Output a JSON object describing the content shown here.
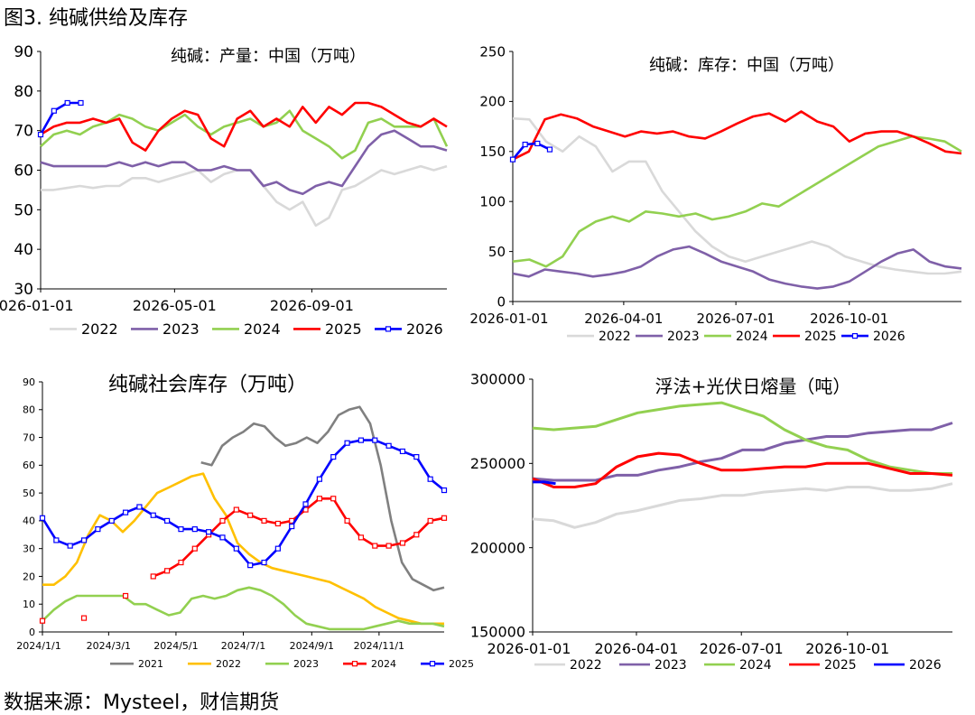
{
  "figure_title": "图3.  纯碱供给及库存",
  "source": "数据来源：Mysteel，财信期货",
  "colors": {
    "2021": "#808080",
    "2022": "#d9d9d9",
    "2022b": "#ffc000",
    "2023": "#7f60a8",
    "2023c": "#92d050",
    "2024": "#92d050",
    "2024b": "#ff0000",
    "2025": "#ff0000",
    "2025b": "#0000ff",
    "2026": "#0000ff"
  },
  "chart_data": [
    {
      "type": "line",
      "title": "纯碱：产量：中国（万吨）",
      "ylim": [
        30,
        90
      ],
      "yticks": [
        "30",
        "40",
        "50",
        "60",
        "70",
        "80",
        "90"
      ],
      "xticks": [
        "2026-01-01",
        "2026-05-01",
        "2026-09-01"
      ],
      "xtick_days": [
        0,
        120,
        243
      ],
      "xdays": 364,
      "series": [
        {
          "name": "2022",
          "color": "#d9d9d9",
          "values": [
            55,
            55,
            55.5,
            56,
            55.5,
            56,
            56,
            58,
            58,
            57,
            58,
            59,
            60,
            57,
            59,
            60,
            60,
            56,
            52,
            50,
            52,
            46,
            48,
            55,
            56,
            58,
            60,
            59,
            60,
            61,
            60,
            61
          ]
        },
        {
          "name": "2023",
          "color": "#7f60a8",
          "values": [
            62,
            61,
            61,
            61,
            61,
            61,
            62,
            61,
            62,
            61,
            62,
            62,
            60,
            60,
            61,
            60,
            60,
            56,
            57,
            55,
            54,
            56,
            57,
            56,
            61,
            66,
            69,
            70,
            68,
            66,
            66,
            65
          ]
        },
        {
          "name": "2024",
          "color": "#92d050",
          "values": [
            66,
            69,
            70,
            69,
            71,
            72,
            74,
            73,
            71,
            70,
            72,
            74,
            71,
            69,
            71,
            72,
            73,
            71,
            72,
            75,
            70,
            68,
            66,
            63,
            65,
            72,
            73,
            71,
            71,
            71,
            73,
            66
          ]
        },
        {
          "name": "2025",
          "color": "#ff0000",
          "values": [
            69,
            71,
            72,
            72,
            73,
            72,
            73,
            67,
            65,
            70,
            73,
            75,
            74,
            68,
            66,
            73,
            75,
            71,
            73,
            71,
            76,
            72,
            76,
            74,
            77,
            77,
            76,
            74,
            72,
            71,
            73,
            71
          ]
        },
        {
          "name": "2026",
          "color": "#0000ff",
          "marker": true,
          "values": [
            69,
            75,
            77,
            77
          ]
        }
      ],
      "legend": [
        "2022",
        "2023",
        "2024",
        "2025",
        "2026"
      ]
    },
    {
      "type": "line",
      "title": "纯碱：库存：中国（万吨）",
      "ylim": [
        0,
        250
      ],
      "yticks": [
        "0",
        "50",
        "100",
        "150",
        "200",
        "250"
      ],
      "xticks": [
        "2026-01-01",
        "2026-04-01",
        "2026-07-01",
        "2026-10-01"
      ],
      "xtick_days": [
        0,
        90,
        181,
        273
      ],
      "xdays": 364,
      "series": [
        {
          "name": "2022",
          "color": "#d9d9d9",
          "values": [
            183,
            182,
            160,
            150,
            165,
            155,
            130,
            140,
            140,
            110,
            90,
            70,
            55,
            45,
            40,
            45,
            50,
            55,
            60,
            55,
            45,
            40,
            35,
            32,
            30,
            28,
            28,
            30
          ]
        },
        {
          "name": "2023",
          "color": "#7f60a8",
          "values": [
            28,
            25,
            32,
            30,
            28,
            25,
            27,
            30,
            35,
            45,
            52,
            55,
            48,
            40,
            35,
            30,
            22,
            18,
            15,
            13,
            15,
            20,
            30,
            40,
            48,
            52,
            40,
            35,
            33
          ]
        },
        {
          "name": "2024",
          "color": "#92d050",
          "values": [
            40,
            42,
            35,
            45,
            70,
            80,
            85,
            80,
            90,
            88,
            85,
            88,
            82,
            85,
            90,
            98,
            95,
            105,
            115,
            125,
            135,
            145,
            155,
            160,
            165,
            163,
            160,
            150
          ]
        },
        {
          "name": "2025",
          "color": "#ff0000",
          "values": [
            142,
            150,
            182,
            187,
            183,
            175,
            170,
            165,
            170,
            168,
            170,
            165,
            163,
            170,
            178,
            185,
            188,
            180,
            190,
            180,
            175,
            160,
            168,
            170,
            170,
            165,
            158,
            150,
            148
          ]
        },
        {
          "name": "2026",
          "color": "#0000ff",
          "marker": true,
          "values": [
            142,
            157,
            158,
            152
          ]
        }
      ],
      "legend": [
        "2022",
        "2023",
        "2024",
        "2025",
        "2026"
      ]
    },
    {
      "type": "line",
      "title": "纯碱社会库存（万吨）",
      "ylim": [
        0,
        90
      ],
      "yticks": [
        "0",
        "10",
        "20",
        "30",
        "40",
        "50",
        "60",
        "70",
        "80",
        "90"
      ],
      "xticks": [
        "2024/1/1",
        "2024/3/1",
        "2024/5/1",
        "2024/7/1",
        "2024/9/1",
        "2024/11/1"
      ],
      "xtick_days": [
        0,
        60,
        121,
        182,
        244,
        305
      ],
      "xdays": 364,
      "series": [
        {
          "name": "2021",
          "color": "#808080",
          "values": [
            null,
            null,
            null,
            null,
            null,
            null,
            null,
            null,
            null,
            null,
            null,
            null,
            null,
            null,
            null,
            61,
            60,
            67,
            70,
            72,
            75,
            74,
            70,
            67,
            68,
            70,
            68,
            72,
            78,
            80,
            81,
            75,
            60,
            40,
            25,
            19,
            17,
            15,
            16
          ]
        },
        {
          "name": "2022",
          "color": "#ffc000",
          "values": [
            17,
            17,
            20,
            25,
            35,
            42,
            40,
            36,
            40,
            45,
            50,
            52,
            54,
            56,
            57,
            48,
            42,
            32,
            28,
            25,
            23,
            22,
            21,
            20,
            19,
            18,
            16,
            14,
            12,
            9,
            7,
            5,
            4,
            3,
            3,
            3
          ]
        },
        {
          "name": "2023",
          "color": "#92d050",
          "values": [
            4,
            8,
            11,
            13,
            13,
            13,
            13,
            13,
            10,
            10,
            8,
            6,
            7,
            12,
            13,
            12,
            13,
            15,
            16,
            15,
            13,
            10,
            6,
            3,
            2,
            1,
            1,
            1,
            1,
            2,
            3,
            4,
            3,
            3,
            3,
            2
          ]
        },
        {
          "name": "2024",
          "color": "#ff0000",
          "marker": true,
          "values": [
            4,
            null,
            null,
            5,
            null,
            null,
            13,
            null,
            20,
            22,
            25,
            30,
            35,
            40,
            44,
            42,
            40,
            39,
            40,
            44,
            48,
            48,
            40,
            34,
            31,
            31,
            32,
            35,
            40,
            41
          ]
        },
        {
          "name": "2025",
          "color": "#0000ff",
          "marker": true,
          "values": [
            41,
            33,
            31,
            33,
            37,
            40,
            43,
            45,
            42,
            40,
            37,
            37,
            36,
            34,
            30,
            24,
            25,
            30,
            38,
            46,
            55,
            63,
            68,
            69,
            69,
            67,
            65,
            63,
            55,
            51
          ]
        }
      ],
      "legend": [
        "2021",
        "2022",
        "2023",
        "2024",
        "2025"
      ]
    },
    {
      "type": "line",
      "title": "浮法+光伏日熔量（吨）",
      "ylim": [
        150000,
        300000
      ],
      "yticks": [
        "150000",
        "200000",
        "250000",
        "300000"
      ],
      "xticks": [
        "2026-01-01",
        "2026-04-01",
        "2026-07-01",
        "2026-10-01"
      ],
      "xtick_days": [
        0,
        90,
        181,
        273
      ],
      "xdays": 364,
      "series": [
        {
          "name": "2022",
          "color": "#d9d9d9",
          "values": [
            217000,
            216000,
            212000,
            215000,
            220000,
            222000,
            225000,
            228000,
            229000,
            231000,
            231000,
            233000,
            234000,
            235000,
            234000,
            236000,
            236000,
            234000,
            234000,
            235000,
            238000
          ]
        },
        {
          "name": "2023",
          "color": "#7f60a8",
          "values": [
            241000,
            240000,
            240000,
            240000,
            243000,
            243000,
            246000,
            248000,
            251000,
            253000,
            258000,
            258000,
            262000,
            264000,
            266000,
            266000,
            268000,
            269000,
            270000,
            270000,
            274000
          ]
        },
        {
          "name": "2024",
          "color": "#92d050",
          "values": [
            271000,
            270000,
            271000,
            272000,
            276000,
            280000,
            282000,
            284000,
            285000,
            286000,
            282000,
            278000,
            270000,
            264000,
            260000,
            258000,
            252000,
            248000,
            246000,
            244000,
            244000
          ]
        },
        {
          "name": "2025",
          "color": "#ff0000",
          "values": [
            241000,
            236000,
            236000,
            238000,
            248000,
            254000,
            256000,
            255000,
            250000,
            246000,
            246000,
            247000,
            248000,
            248000,
            250000,
            250000,
            250000,
            247000,
            244000,
            244000,
            243000
          ]
        },
        {
          "name": "2026",
          "color": "#0000ff",
          "values": [
            239000,
            239000,
            238000
          ]
        }
      ],
      "legend": [
        "2022",
        "2023",
        "2024",
        "2025",
        "2026"
      ]
    }
  ]
}
